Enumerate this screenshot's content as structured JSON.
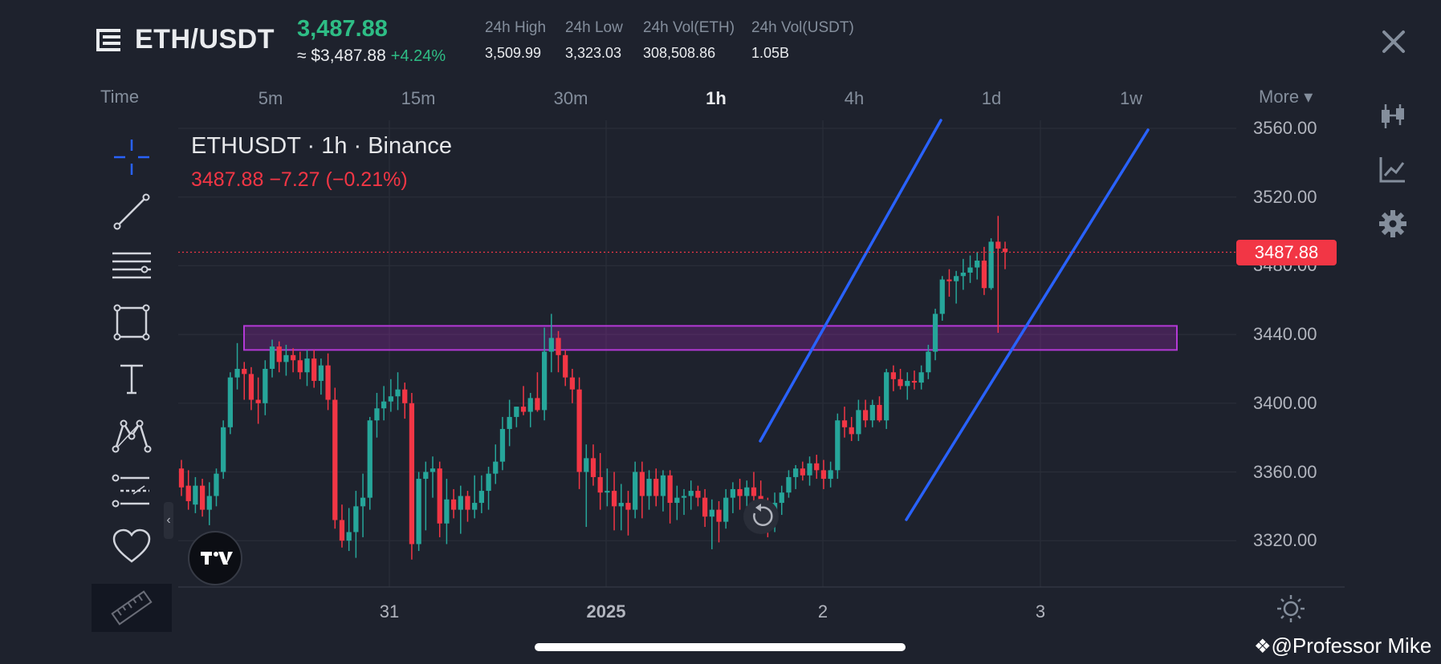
{
  "header": {
    "symbol": "ETH/USDT",
    "price": "3,487.88",
    "approx_price": "≈ $3,487.88",
    "change_pct": "+4.24%",
    "stats": [
      {
        "label": "24h High",
        "value": "3,509.99"
      },
      {
        "label": "24h Low",
        "value": "3,323.03"
      },
      {
        "label": "24h Vol(ETH)",
        "value": "308,508.86"
      },
      {
        "label": "24h Vol(USDT)",
        "value": "1.05B"
      }
    ]
  },
  "timeframes": {
    "time_label": "Time",
    "items": [
      "5m",
      "15m",
      "30m",
      "1h",
      "4h",
      "1d",
      "1w"
    ],
    "active": "1h",
    "more_label": "More ▾"
  },
  "legend": {
    "title": "ETHUSDT · 1h · Binance",
    "price_line": "3487.88  −7.27 (−0.21%)"
  },
  "price_tag": "3487.88",
  "watermark": "@Professor Mike",
  "colors": {
    "up": "#26a69a",
    "down": "#f23645",
    "zone": "#9c27b0",
    "trendline": "#2962ff",
    "bg": "#1e222d"
  },
  "icons": {
    "left_toolbar": [
      "crosshair-icon",
      "trendline-icon",
      "fib-icon",
      "rectangle-icon",
      "text-icon",
      "pattern-icon",
      "forecast-icon",
      "favorite-icon"
    ],
    "right_toolbar": [
      "candles-icon",
      "indicator-icon",
      "gear-icon"
    ]
  },
  "chart_data": {
    "type": "candlestick",
    "x_ticks": [
      "31",
      "2025",
      "2",
      "3"
    ],
    "y_ticks": [
      "3560.00",
      "3520.00",
      "3480.00",
      "3440.00",
      "3400.00",
      "3360.00",
      "3320.00"
    ],
    "ylim": [
      3293,
      3571
    ],
    "last_price": 3487.88,
    "grid": true,
    "resistance_zone": [
      3431,
      3445
    ],
    "trend_channel": [
      {
        "from": [
          3378,
          3561
        ],
        "to": [
          3361,
          3560
        ]
      },
      {
        "from": [
          3332,
          3559
        ],
        "to": [
          3560,
          3560
        ]
      }
    ],
    "candles": [
      [
        3362,
        3367,
        3346,
        3351
      ],
      [
        3352,
        3361,
        3338,
        3343
      ],
      [
        3341,
        3357,
        3336,
        3352
      ],
      [
        3352,
        3356,
        3334,
        3338
      ],
      [
        3338,
        3354,
        3329,
        3346
      ],
      [
        3346,
        3362,
        3340,
        3359
      ],
      [
        3360,
        3390,
        3356,
        3386
      ],
      [
        3386,
        3418,
        3382,
        3415
      ],
      [
        3415,
        3435,
        3408,
        3420
      ],
      [
        3420,
        3424,
        3402,
        3417
      ],
      [
        3417,
        3421,
        3396,
        3402
      ],
      [
        3402,
        3415,
        3388,
        3400
      ],
      [
        3400,
        3425,
        3393,
        3420
      ],
      [
        3420,
        3437,
        3415,
        3433
      ],
      [
        3433,
        3436,
        3418,
        3424
      ],
      [
        3424,
        3434,
        3416,
        3428
      ],
      [
        3428,
        3432,
        3418,
        3425
      ],
      [
        3425,
        3430,
        3414,
        3418
      ],
      [
        3418,
        3431,
        3410,
        3426
      ],
      [
        3426,
        3431,
        3409,
        3413
      ],
      [
        3413,
        3426,
        3405,
        3422
      ],
      [
        3422,
        3429,
        3396,
        3402
      ],
      [
        3402,
        3409,
        3327,
        3332
      ],
      [
        3332,
        3341,
        3316,
        3320
      ],
      [
        3320,
        3339,
        3314,
        3325
      ],
      [
        3325,
        3349,
        3310,
        3340
      ],
      [
        3340,
        3359,
        3322,
        3345
      ],
      [
        3345,
        3392,
        3338,
        3390
      ],
      [
        3390,
        3406,
        3380,
        3397
      ],
      [
        3397,
        3410,
        3390,
        3401
      ],
      [
        3401,
        3414,
        3395,
        3404
      ],
      [
        3404,
        3418,
        3396,
        3408
      ],
      [
        3408,
        3412,
        3391,
        3400
      ],
      [
        3400,
        3406,
        3309,
        3318
      ],
      [
        3318,
        3360,
        3314,
        3356
      ],
      [
        3356,
        3366,
        3326,
        3360
      ],
      [
        3360,
        3369,
        3345,
        3362
      ],
      [
        3362,
        3366,
        3322,
        3330
      ],
      [
        3330,
        3356,
        3318,
        3344
      ],
      [
        3344,
        3350,
        3333,
        3338
      ],
      [
        3338,
        3352,
        3324,
        3346
      ],
      [
        3346,
        3349,
        3331,
        3338
      ],
      [
        3338,
        3358,
        3333,
        3342
      ],
      [
        3342,
        3358,
        3336,
        3349
      ],
      [
        3349,
        3363,
        3338,
        3359
      ],
      [
        3359,
        3376,
        3353,
        3366
      ],
      [
        3366,
        3392,
        3361,
        3385
      ],
      [
        3385,
        3402,
        3375,
        3392
      ],
      [
        3392,
        3398,
        3386,
        3398
      ],
      [
        3398,
        3410,
        3393,
        3395
      ],
      [
        3395,
        3406,
        3386,
        3403
      ],
      [
        3403,
        3418,
        3395,
        3396
      ],
      [
        3396,
        3444,
        3390,
        3430
      ],
      [
        3430,
        3452,
        3418,
        3438
      ],
      [
        3438,
        3442,
        3418,
        3428
      ],
      [
        3428,
        3431,
        3410,
        3415
      ],
      [
        3415,
        3420,
        3400,
        3408
      ],
      [
        3408,
        3415,
        3350,
        3360
      ],
      [
        3360,
        3376,
        3328,
        3368
      ],
      [
        3368,
        3376,
        3352,
        3357
      ],
      [
        3357,
        3371,
        3338,
        3348
      ],
      [
        3348,
        3362,
        3340,
        3349
      ],
      [
        3349,
        3360,
        3326,
        3340
      ],
      [
        3340,
        3353,
        3326,
        3342
      ],
      [
        3342,
        3349,
        3323,
        3338
      ],
      [
        3338,
        3366,
        3333,
        3360
      ],
      [
        3360,
        3366,
        3333,
        3346
      ],
      [
        3346,
        3361,
        3338,
        3356
      ],
      [
        3356,
        3362,
        3340,
        3346
      ],
      [
        3346,
        3361,
        3337,
        3358
      ],
      [
        3358,
        3361,
        3330,
        3342
      ],
      [
        3342,
        3352,
        3332,
        3345
      ],
      [
        3345,
        3350,
        3335,
        3346
      ],
      [
        3346,
        3355,
        3338,
        3349
      ],
      [
        3349,
        3352,
        3340,
        3345
      ],
      [
        3345,
        3350,
        3328,
        3334
      ],
      [
        3334,
        3344,
        3315,
        3338
      ],
      [
        3338,
        3343,
        3319,
        3331
      ],
      [
        3331,
        3350,
        3327,
        3345
      ],
      [
        3345,
        3354,
        3336,
        3350
      ],
      [
        3350,
        3356,
        3338,
        3346
      ],
      [
        3346,
        3355,
        3340,
        3351
      ],
      [
        3351,
        3360,
        3340,
        3346
      ],
      [
        3346,
        3355,
        3328,
        3338
      ],
      [
        3338,
        3345,
        3322,
        3333
      ],
      [
        3333,
        3348,
        3325,
        3342
      ],
      [
        3342,
        3352,
        3335,
        3348
      ],
      [
        3348,
        3361,
        3345,
        3357
      ],
      [
        3357,
        3364,
        3350,
        3362
      ],
      [
        3362,
        3366,
        3355,
        3358
      ],
      [
        3358,
        3369,
        3352,
        3365
      ],
      [
        3365,
        3370,
        3356,
        3361
      ],
      [
        3361,
        3367,
        3350,
        3356
      ],
      [
        3356,
        3366,
        3351,
        3361
      ],
      [
        3361,
        3394,
        3356,
        3390
      ],
      [
        3390,
        3398,
        3380,
        3386
      ],
      [
        3386,
        3392,
        3378,
        3382
      ],
      [
        3382,
        3402,
        3378,
        3396
      ],
      [
        3396,
        3402,
        3386,
        3390
      ],
      [
        3390,
        3402,
        3386,
        3399
      ],
      [
        3399,
        3404,
        3389,
        3390
      ],
      [
        3390,
        3420,
        3385,
        3418
      ],
      [
        3418,
        3422,
        3407,
        3414
      ],
      [
        3414,
        3420,
        3408,
        3410
      ],
      [
        3410,
        3418,
        3402,
        3413
      ],
      [
        3413,
        3419,
        3408,
        3412
      ],
      [
        3412,
        3422,
        3408,
        3418
      ],
      [
        3418,
        3434,
        3414,
        3430
      ],
      [
        3430,
        3455,
        3425,
        3452
      ],
      [
        3452,
        3474,
        3448,
        3472
      ],
      [
        3472,
        3478,
        3462,
        3471
      ],
      [
        3471,
        3477,
        3458,
        3474
      ],
      [
        3474,
        3484,
        3466,
        3476
      ],
      [
        3476,
        3486,
        3470,
        3479
      ],
      [
        3479,
        3488,
        3472,
        3483
      ],
      [
        3483,
        3491,
        3463,
        3467
      ],
      [
        3467,
        3496,
        3466,
        3494
      ],
      [
        3494,
        3509,
        3441,
        3490
      ],
      [
        3490,
        3494,
        3478,
        3488
      ]
    ]
  }
}
